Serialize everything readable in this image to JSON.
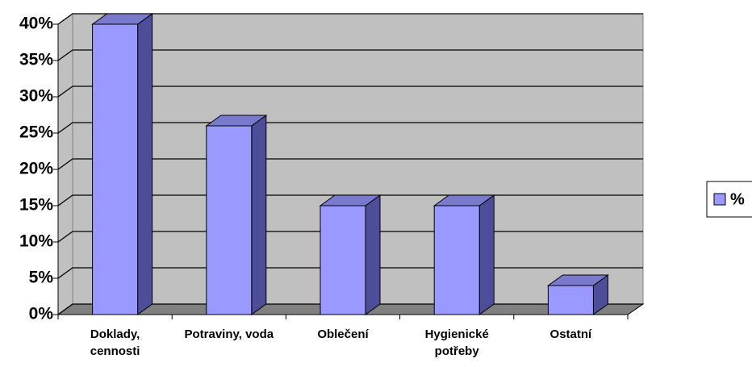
{
  "chart_data": {
    "type": "bar3d",
    "categories": [
      "Doklady, cennosti",
      "Potraviny, voda",
      "Oblečení",
      "Hygienické potřeby",
      "Ostatní"
    ],
    "series": [
      {
        "name": "%",
        "color": "#9999ff",
        "values": [
          40,
          26,
          15,
          15,
          4
        ]
      }
    ],
    "ylim": [
      0,
      40
    ],
    "yticks": [
      {
        "value": 0,
        "label": "0%"
      },
      {
        "value": 5,
        "label": "5%"
      },
      {
        "value": 10,
        "label": "10%"
      },
      {
        "value": 15,
        "label": "15%"
      },
      {
        "value": 20,
        "label": "20%"
      },
      {
        "value": 25,
        "label": "25%"
      },
      {
        "value": 30,
        "label": "30%"
      },
      {
        "value": 35,
        "label": "35%"
      },
      {
        "value": 40,
        "label": "40%"
      }
    ],
    "grid": true,
    "legend": "right"
  }
}
